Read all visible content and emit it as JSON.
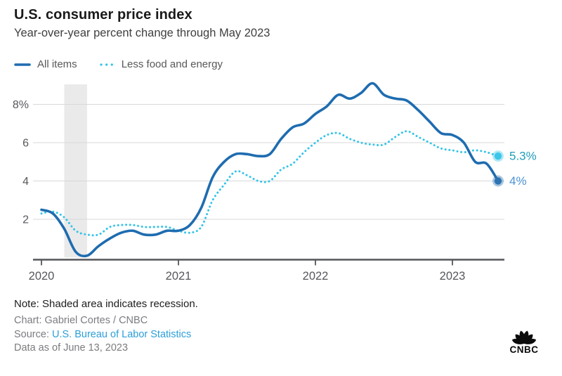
{
  "header": {
    "title": "U.S. consumer price index",
    "subtitle": "Year-over-year percent change through May 2023"
  },
  "legend": [
    {
      "label": "All items",
      "color": "#1e6cb0",
      "style": "solid"
    },
    {
      "label": "Less food and energy",
      "color": "#35c4e8",
      "style": "dotted"
    }
  ],
  "chart_data": {
    "type": "line",
    "x_start": "2020-01",
    "x_end": "2023-05",
    "x_tick_labels": [
      "2020",
      "2021",
      "2022",
      "2023"
    ],
    "y_ticks": [
      {
        "value": 2,
        "label": "2"
      },
      {
        "value": 4,
        "label": "4"
      },
      {
        "value": 6,
        "label": "6"
      },
      {
        "value": 8,
        "label": "8%"
      }
    ],
    "ylim": [
      0,
      9.2
    ],
    "grid": true,
    "legend_position": "top-left",
    "recession_band": {
      "from": "2020-03",
      "to": "2020-05"
    },
    "series": [
      {
        "name": "Less food and energy",
        "color": "#35c4e8",
        "style": "dotted",
        "end_label": "5.3%",
        "end_label_color": "#1f9cba",
        "dot_color": "#3cc6e9",
        "values": [
          2.3,
          2.4,
          2.1,
          1.4,
          1.2,
          1.2,
          1.6,
          1.7,
          1.7,
          1.6,
          1.6,
          1.6,
          1.4,
          1.3,
          1.6,
          3.0,
          3.8,
          4.5,
          4.3,
          4.0,
          4.0,
          4.6,
          4.9,
          5.5,
          6.0,
          6.4,
          6.5,
          6.2,
          6.0,
          5.9,
          5.9,
          6.3,
          6.6,
          6.3,
          6.0,
          5.7,
          5.6,
          5.5,
          5.6,
          5.5,
          5.3
        ]
      },
      {
        "name": "All items",
        "color": "#1e6cb0",
        "style": "solid",
        "end_label": "4%",
        "end_label_color": "#4a92d4",
        "dot_color": "#2e74b3",
        "values": [
          2.5,
          2.3,
          1.5,
          0.3,
          0.1,
          0.6,
          1.0,
          1.3,
          1.4,
          1.2,
          1.2,
          1.4,
          1.4,
          1.7,
          2.6,
          4.2,
          5.0,
          5.4,
          5.4,
          5.3,
          5.4,
          6.2,
          6.8,
          7.0,
          7.5,
          7.9,
          8.5,
          8.3,
          8.6,
          9.1,
          8.5,
          8.3,
          8.2,
          7.7,
          7.1,
          6.5,
          6.4,
          6.0,
          5.0,
          4.9,
          4.0
        ]
      }
    ],
    "colors": {
      "gridline": "#d8d8d8",
      "recession_band": "#eaeaea",
      "axis": "#55565a",
      "tick_label": "#56575b"
    }
  },
  "footer": {
    "note": "Note: Shaded area indicates recession.",
    "credit": "Chart: Gabriel Cortes / CNBC",
    "source_label": "Source: ",
    "source_link": "U.S. Bureau of Labor Statistics",
    "data_as_of": "Data as of June 13, 2023"
  },
  "branding": {
    "logo_text": "CNBC"
  }
}
